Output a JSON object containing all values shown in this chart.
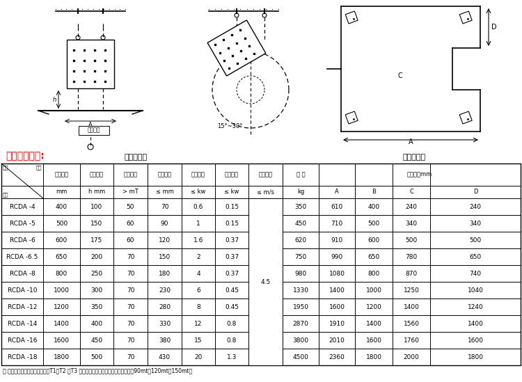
{
  "title": "主要技术参数:",
  "subtitle_left": "安装示意图",
  "subtitle_right": "外形尺寸图",
  "note": "注:各型号都有高于国标的特强型T1，T2 和T3 产品设计，额定吊高处磁场强度分别为90mt，120mt，150mt。",
  "header_row1_labels": [
    "适应带宽",
    "额定吊高",
    "磁场强度",
    "物料厚度",
    "励磁功率",
    "风机功率",
    "适应带速",
    "重 量",
    "外形尺寸mm"
  ],
  "header_row2_labels": [
    "型号",
    "mm",
    "h mm",
    "> mT",
    "≤ mm",
    "≤ kw",
    "≤ kw",
    "≤ m/s",
    "kg",
    "A",
    "B",
    "C",
    "D"
  ],
  "diagonal_top": "项目",
  "diagonal_left": "参数",
  "diagonal_bottom": "型号",
  "speed_value": "4.5",
  "data_rows": [
    [
      "RCDA -4",
      "400",
      "100",
      "50",
      "70",
      "0.6",
      "0.15",
      "350",
      "610",
      "400",
      "240",
      "240"
    ],
    [
      "RCDA -5",
      "500",
      "150",
      "60",
      "90",
      "1",
      "0.15",
      "450",
      "710",
      "500",
      "340",
      "340"
    ],
    [
      "RCDA -6",
      "600",
      "175",
      "60",
      "120",
      "1.6",
      "0.37",
      "620",
      "910",
      "600",
      "500",
      "500"
    ],
    [
      "RCDA -6.5",
      "650",
      "200",
      "70",
      "150",
      "2",
      "0.37",
      "750",
      "990",
      "650",
      "780",
      "650"
    ],
    [
      "RCDA -8",
      "800",
      "250",
      "70",
      "180",
      "4",
      "0.37",
      "980",
      "1080",
      "800",
      "870",
      "740"
    ],
    [
      "RCDA -10",
      "1000",
      "300",
      "70",
      "230",
      "6",
      "0.45",
      "1330",
      "1400",
      "1000",
      "1250",
      "1040"
    ],
    [
      "RCDA -12",
      "1200",
      "350",
      "70",
      "280",
      "8",
      "0.45",
      "1950",
      "1600",
      "1200",
      "1400",
      "1240"
    ],
    [
      "RCDA -14",
      "1400",
      "400",
      "70",
      "330",
      "12",
      "0.8",
      "2870",
      "1910",
      "1400",
      "1560",
      "1400"
    ],
    [
      "RCDA -16",
      "1600",
      "450",
      "70",
      "380",
      "15",
      "0.8",
      "3800",
      "2010",
      "1600",
      "1760",
      "1600"
    ],
    [
      "RCDA -18",
      "1800",
      "500",
      "70",
      "430",
      "20",
      "1.3",
      "4500",
      "2360",
      "1800",
      "2000",
      "1800"
    ]
  ],
  "bg": "#ffffff",
  "title_color": "#ff0000",
  "black": "#000000"
}
